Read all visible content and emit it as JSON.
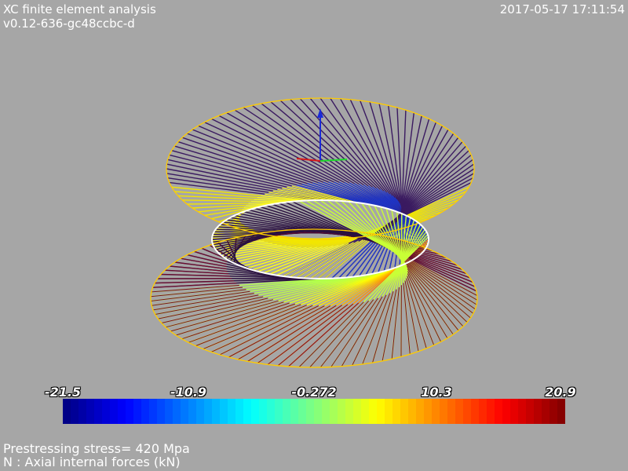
{
  "header": {
    "title": "XC finite element analysis",
    "version": "v0.12-636-gc48ccbc-d",
    "timestamp": "2017-05-17 17:11:54"
  },
  "legend": {
    "ticks": [
      "-21.5",
      "-10.9",
      "-0.272",
      "10.3",
      "20.9"
    ],
    "colormap": "jet"
  },
  "footer": {
    "prestress": "Prestressing stress= 420 Mpa",
    "quantity": "N : Axial internal forces (kN)"
  },
  "colors": {
    "background": "#a6a6a6",
    "ring_outline": "#ffcc00",
    "text": "#ffffff"
  }
}
